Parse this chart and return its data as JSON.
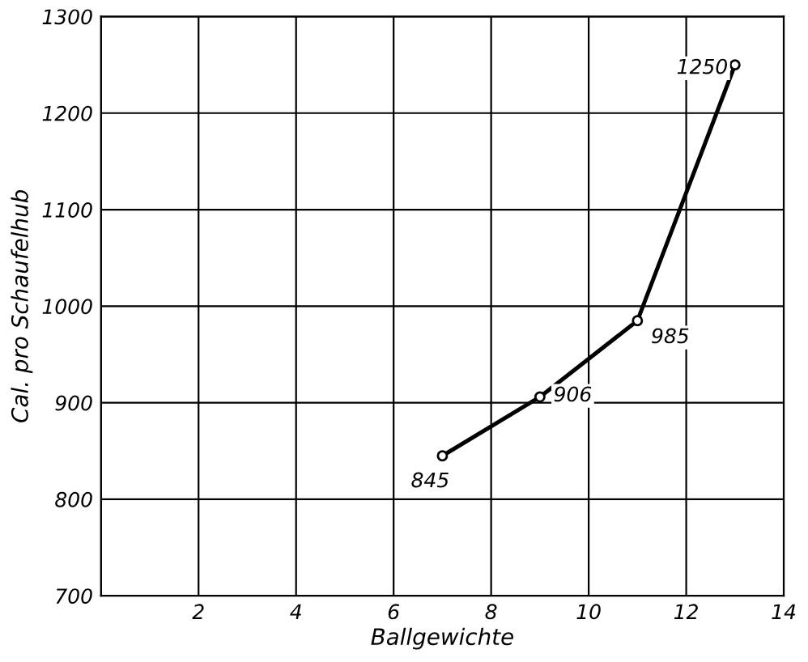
{
  "chart_data": {
    "type": "line",
    "xlabel": "Ballgewichte",
    "ylabel": "Cal. pro Schaufelhub",
    "x": [
      7,
      9,
      11,
      13
    ],
    "series": [
      {
        "color": "#000000",
        "values": [
          845,
          906,
          985,
          1250
        ]
      }
    ],
    "data_labels": true,
    "marker": "circle",
    "line_style": "solid",
    "grid": true,
    "xlim": [
      0,
      14
    ],
    "xticks": [
      {
        "value": 0,
        "label": null
      },
      2,
      4,
      6,
      8,
      10,
      12,
      14
    ],
    "ylim": [
      700,
      1300
    ],
    "yticks": [
      700,
      800,
      900,
      1000,
      1100,
      1200,
      1300
    ]
  }
}
